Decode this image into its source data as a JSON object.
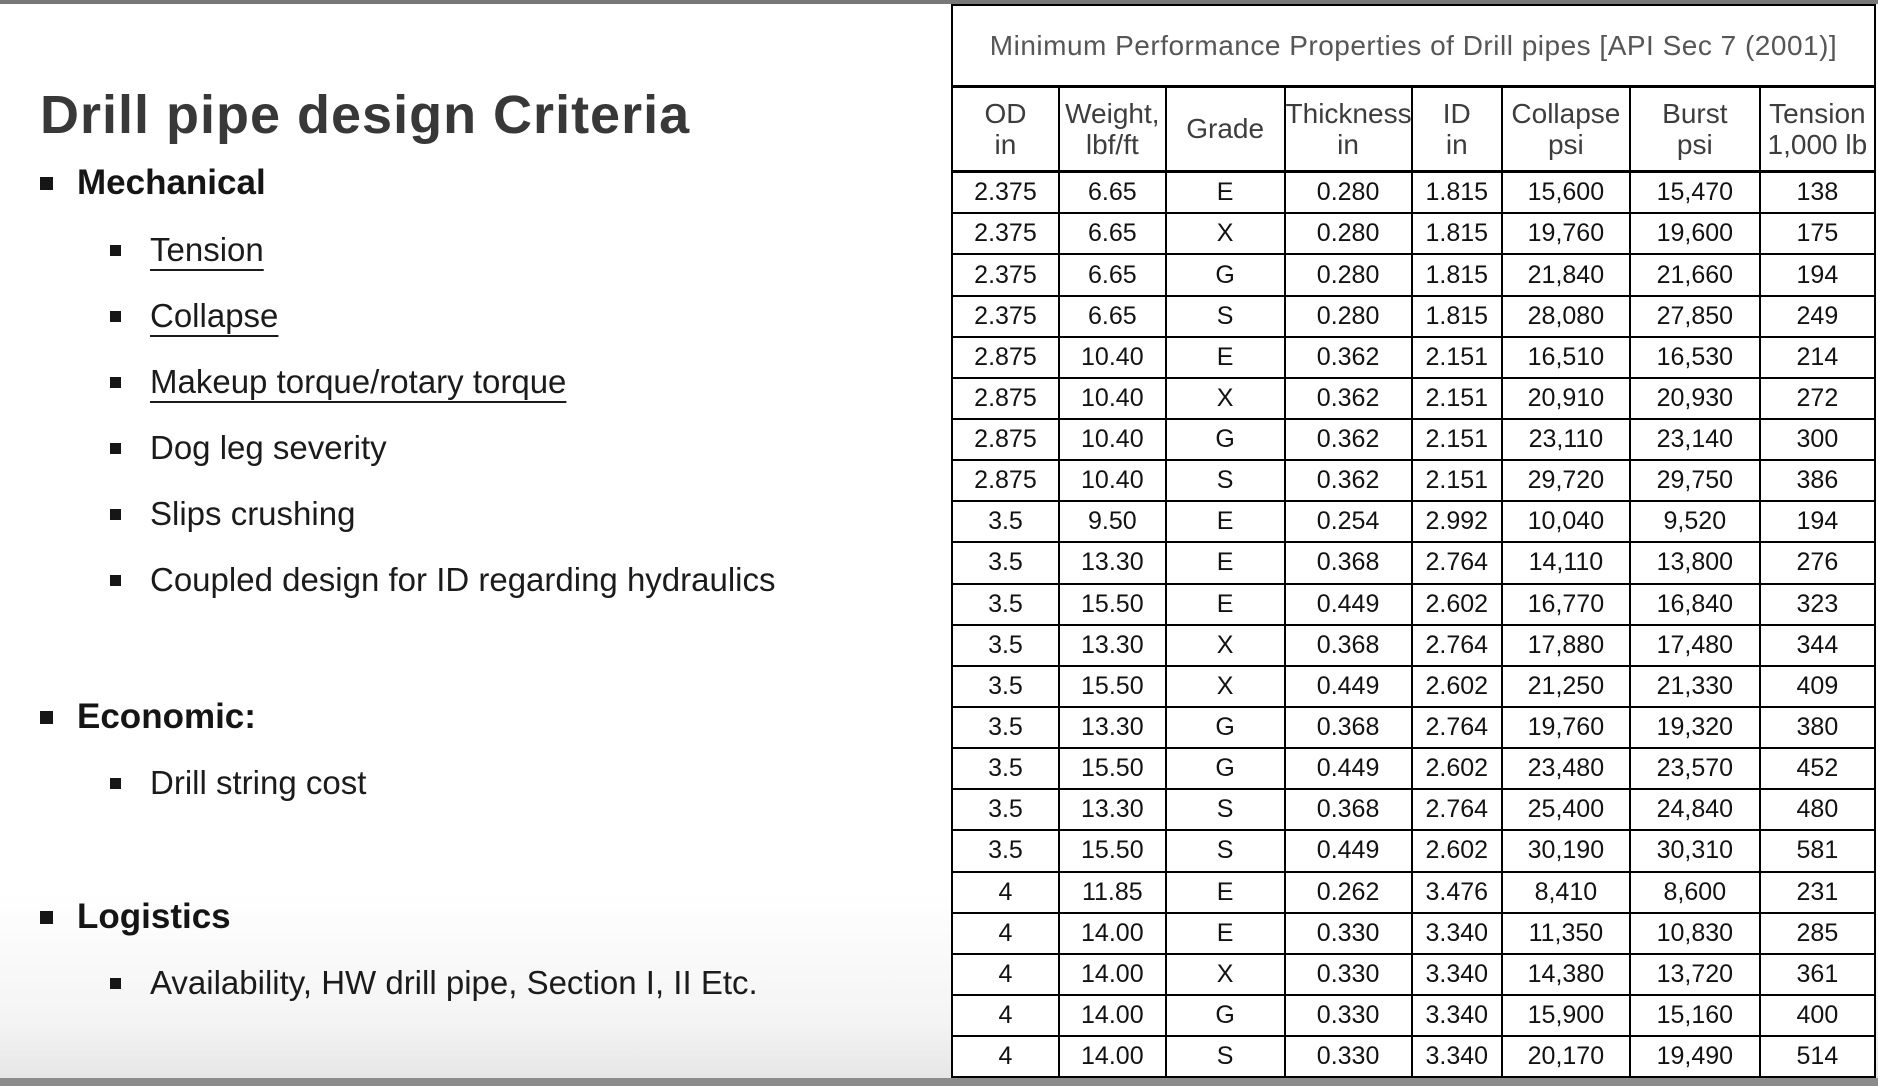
{
  "slide": {
    "title": "Drill pipe design Criteria",
    "sections": [
      {
        "heading": "Mechanical",
        "items": [
          {
            "text": "Tension",
            "underline": true
          },
          {
            "text": "Collapse",
            "underline": true
          },
          {
            "text": "Makeup torque/rotary torque",
            "underline": true
          },
          {
            "text": "Dog leg severity",
            "underline": false
          },
          {
            "text": "Slips crushing",
            "underline": false
          },
          {
            "text": "Coupled design for ID regarding hydraulics",
            "underline": false
          }
        ]
      },
      {
        "heading": "Economic:",
        "items": [
          {
            "text": "Drill string cost",
            "underline": false
          }
        ]
      },
      {
        "heading": "Logistics",
        "items": [
          {
            "text": "Availability, HW drill pipe, Section I, II Etc.",
            "underline": false
          }
        ]
      }
    ]
  },
  "table": {
    "title": "Minimum Performance Properties of Drill pipes [API Sec 7 (2001)]",
    "columns": [
      {
        "line1": "OD",
        "line2": "in"
      },
      {
        "line1": "Weight,",
        "line2": "lbf/ft"
      },
      {
        "line1": "Grade",
        "line2": ""
      },
      {
        "line1": "Thickness",
        "line2": "in"
      },
      {
        "line1": "ID",
        "line2": "in"
      },
      {
        "line1": "Collapse",
        "line2": "psi"
      },
      {
        "line1": "Burst",
        "line2": "psi"
      },
      {
        "line1": "Tension",
        "line2": "1,000 lb"
      }
    ],
    "rows": [
      [
        "2.375",
        "6.65",
        "E",
        "0.280",
        "1.815",
        "15,600",
        "15,470",
        "138"
      ],
      [
        "2.375",
        "6.65",
        "X",
        "0.280",
        "1.815",
        "19,760",
        "19,600",
        "175"
      ],
      [
        "2.375",
        "6.65",
        "G",
        "0.280",
        "1.815",
        "21,840",
        "21,660",
        "194"
      ],
      [
        "2.375",
        "6.65",
        "S",
        "0.280",
        "1.815",
        "28,080",
        "27,850",
        "249"
      ],
      [
        "2.875",
        "10.40",
        "E",
        "0.362",
        "2.151",
        "16,510",
        "16,530",
        "214"
      ],
      [
        "2.875",
        "10.40",
        "X",
        "0.362",
        "2.151",
        "20,910",
        "20,930",
        "272"
      ],
      [
        "2.875",
        "10.40",
        "G",
        "0.362",
        "2.151",
        "23,110",
        "23,140",
        "300"
      ],
      [
        "2.875",
        "10.40",
        "S",
        "0.362",
        "2.151",
        "29,720",
        "29,750",
        "386"
      ],
      [
        "3.5",
        "9.50",
        "E",
        "0.254",
        "2.992",
        "10,040",
        "9,520",
        "194"
      ],
      [
        "3.5",
        "13.30",
        "E",
        "0.368",
        "2.764",
        "14,110",
        "13,800",
        "276"
      ],
      [
        "3.5",
        "15.50",
        "E",
        "0.449",
        "2.602",
        "16,770",
        "16,840",
        "323"
      ],
      [
        "3.5",
        "13.30",
        "X",
        "0.368",
        "2.764",
        "17,880",
        "17,480",
        "344"
      ],
      [
        "3.5",
        "15.50",
        "X",
        "0.449",
        "2.602",
        "21,250",
        "21,330",
        "409"
      ],
      [
        "3.5",
        "13.30",
        "G",
        "0.368",
        "2.764",
        "19,760",
        "19,320",
        "380"
      ],
      [
        "3.5",
        "15.50",
        "G",
        "0.449",
        "2.602",
        "23,480",
        "23,570",
        "452"
      ],
      [
        "3.5",
        "13.30",
        "S",
        "0.368",
        "2.764",
        "25,400",
        "24,840",
        "480"
      ],
      [
        "3.5",
        "15.50",
        "S",
        "0.449",
        "2.602",
        "30,190",
        "30,310",
        "581"
      ],
      [
        "4",
        "11.85",
        "E",
        "0.262",
        "3.476",
        "8,410",
        "8,600",
        "231"
      ],
      [
        "4",
        "14.00",
        "E",
        "0.330",
        "3.340",
        "11,350",
        "10,830",
        "285"
      ],
      [
        "4",
        "14.00",
        "X",
        "0.330",
        "3.340",
        "14,380",
        "13,720",
        "361"
      ],
      [
        "4",
        "14.00",
        "G",
        "0.330",
        "3.340",
        "15,900",
        "15,160",
        "400"
      ],
      [
        "4",
        "14.00",
        "S",
        "0.330",
        "3.340",
        "20,170",
        "19,490",
        "514"
      ]
    ]
  },
  "colors": {
    "frame_bar": "#787878",
    "table_border": "#000000",
    "title_text": "#383838",
    "table_title_text": "#565656",
    "header_text": "#3d3d3d",
    "body_text": "#1b1b1b"
  }
}
